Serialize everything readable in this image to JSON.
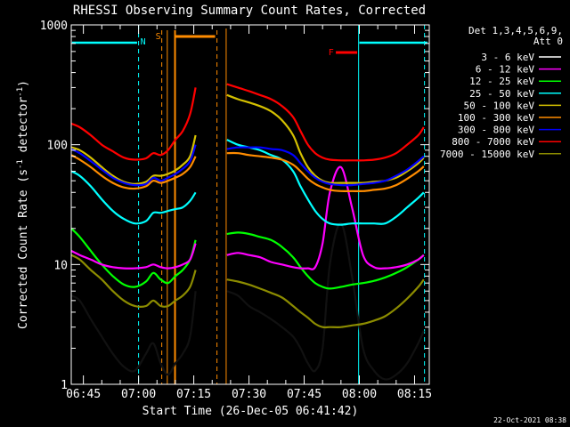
{
  "chart_data": {
    "type": "line",
    "title": "RHESSI Observing Summary Count Rates, Corrected",
    "xlabel": "Start Time (26-Dec-05 06:41:42)",
    "ylabel": "Corrected Count Rate (s⁻¹ detector⁻¹)",
    "ylabel_parts": {
      "a": "Corrected Count Rate (s",
      "sup1": "-1",
      "b": " detector",
      "sup2": "-1",
      "c": ")"
    },
    "y_scale": "log",
    "ylim": [
      1,
      1000
    ],
    "xlim_minutes": [
      41.7,
      139.0
    ],
    "x_ticks": [
      {
        "label": "06:45",
        "t": 45
      },
      {
        "label": "07:00",
        "t": 60
      },
      {
        "label": "07:15",
        "t": 75
      },
      {
        "label": "07:30",
        "t": 90
      },
      {
        "label": "07:45",
        "t": 105
      },
      {
        "label": "08:00",
        "t": 120
      },
      {
        "label": "08:15",
        "t": 135
      }
    ],
    "y_ticks": [
      {
        "label": "1",
        "v": 1
      },
      {
        "label": "10",
        "v": 10
      },
      {
        "label": "100",
        "v": 100
      },
      {
        "label": "1000",
        "v": 1000
      }
    ],
    "legend_header": [
      "Det 1,3,4,5,6,9,",
      "Att 0"
    ],
    "legend_position": "right",
    "series": [
      {
        "name": "3 - 6 keV",
        "color": "#000000"
      },
      {
        "name": "6 - 12 keV",
        "color": "#ff00ff"
      },
      {
        "name": "12 - 25 keV",
        "color": "#00ff00"
      },
      {
        "name": "25 - 50 keV",
        "color": "#00ffff"
      },
      {
        "name": "50 - 100 keV",
        "color": "#d4c000"
      },
      {
        "name": "100 - 300 keV",
        "color": "#ff8c00"
      },
      {
        "name": "300 - 800 keV",
        "color": "#0000ff"
      },
      {
        "name": "800 - 7000 keV",
        "color": "#ff0000"
      },
      {
        "name": "7000 - 15000 keV",
        "color": "#8c8c00"
      }
    ],
    "segments": [
      {
        "t": [
          41.7,
          44,
          47,
          50,
          53,
          56,
          59,
          62,
          64,
          66,
          68,
          70,
          72,
          74,
          75.5
        ],
        "values": {
          "3 - 6 keV": [
            5.5,
            5,
            3.5,
            2.5,
            1.8,
            1.4,
            1.3,
            1.8,
            2.2,
            1.5,
            1.2,
            1.5,
            1.8,
            2.5,
            6
          ],
          "6 - 12 keV": [
            13,
            12,
            11,
            10,
            9.5,
            9.3,
            9.3,
            9.5,
            10,
            9.5,
            9.3,
            9.5,
            10,
            11,
            15
          ],
          "12 - 25 keV": [
            20,
            17,
            13,
            10,
            8,
            6.8,
            6.5,
            7.2,
            8.5,
            7.5,
            7,
            8,
            9,
            11,
            16
          ],
          "25 - 50 keV": [
            60,
            55,
            45,
            35,
            28,
            24,
            22,
            23,
            27,
            27,
            28,
            29,
            30,
            34,
            40
          ],
          "50 - 100 keV": [
            95,
            90,
            78,
            65,
            55,
            49,
            47,
            49,
            55,
            55,
            57,
            61,
            68,
            80,
            120
          ],
          "100 - 300 keV": [
            82,
            75,
            65,
            55,
            48,
            44,
            43,
            45,
            50,
            48,
            50,
            53,
            57,
            65,
            80
          ],
          "300 - 800 keV": [
            92,
            85,
            73,
            62,
            53,
            48,
            46,
            47,
            53,
            50,
            53,
            57,
            63,
            73,
            100
          ],
          "800 - 7000 keV": [
            150,
            140,
            120,
            100,
            88,
            78,
            75,
            77,
            85,
            82,
            90,
            110,
            130,
            180,
            300
          ],
          "7000 - 15000 keV": [
            12,
            11,
            9,
            7.5,
            6,
            5,
            4.5,
            4.5,
            5,
            4.5,
            4.5,
            5,
            5.5,
            6.5,
            9
          ]
        }
      },
      {
        "t": [
          84,
          87,
          90,
          93,
          96,
          99,
          102,
          104,
          106,
          108,
          110,
          112,
          115,
          118,
          121,
          124,
          127,
          130,
          133,
          136,
          137.5
        ],
        "values": {
          "3 - 6 keV": [
            6,
            5.5,
            4.5,
            4,
            3.5,
            3,
            2.5,
            2,
            1.5,
            1.3,
            2,
            10,
            22,
            8,
            2,
            1.3,
            1.1,
            1.2,
            1.5,
            2.2,
            2.8
          ],
          "6 - 12 keV": [
            12,
            12.5,
            12,
            11.5,
            10.5,
            10,
            9.5,
            9.3,
            9.3,
            9.5,
            15,
            40,
            65,
            30,
            12,
            9.5,
            9.3,
            9.5,
            10,
            11,
            12
          ],
          "12 - 25 keV": [
            18,
            18.5,
            18,
            17,
            16,
            14,
            11.5,
            9.5,
            8,
            7,
            6.5,
            6.3,
            6.5,
            6.8,
            7,
            7.3,
            7.8,
            8.5,
            9.5,
            11,
            12
          ],
          "25 - 50 keV": [
            110,
            100,
            95,
            90,
            82,
            75,
            60,
            45,
            35,
            28,
            24,
            22,
            21.5,
            22,
            22,
            22,
            22,
            25,
            30,
            36,
            40
          ],
          "50 - 100 keV": [
            260,
            240,
            225,
            210,
            190,
            160,
            120,
            85,
            65,
            55,
            50,
            48,
            48,
            48,
            48,
            49,
            50,
            53,
            60,
            70,
            78
          ],
          "100 - 300 keV": [
            85,
            85,
            82,
            80,
            78,
            75,
            68,
            60,
            52,
            47,
            44,
            42,
            41,
            41,
            41,
            42,
            43,
            46,
            52,
            60,
            66
          ],
          "300 - 800 keV": [
            92,
            95,
            95,
            95,
            92,
            90,
            82,
            70,
            60,
            53,
            49,
            47,
            46,
            46,
            47,
            48,
            50,
            55,
            62,
            73,
            80
          ],
          "800 - 7000 keV": [
            320,
            300,
            280,
            260,
            240,
            210,
            170,
            130,
            100,
            85,
            78,
            75,
            74,
            74,
            74,
            75,
            78,
            85,
            100,
            120,
            140
          ],
          "7000 - 15000 keV": [
            7.5,
            7.2,
            6.8,
            6.3,
            5.8,
            5.3,
            4.5,
            4,
            3.6,
            3.2,
            3,
            3,
            3,
            3.1,
            3.2,
            3.4,
            3.7,
            4.3,
            5.2,
            6.5,
            7.5
          ]
        }
      }
    ],
    "markers": {
      "N_label": "N",
      "S_label": "S",
      "F_label": "F"
    }
  },
  "footer": {
    "date_stamp": "22-Oct-2021 08:38"
  }
}
